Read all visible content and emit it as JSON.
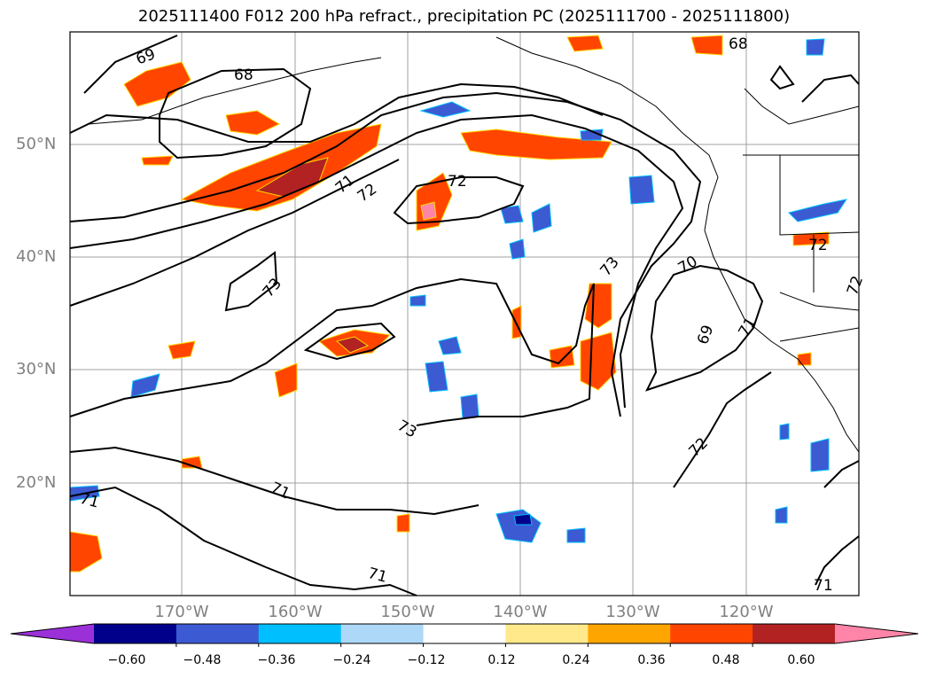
{
  "title": "2025111400 F012 200 hPa refract., precipitation PC (2025111700 - 2025111800)",
  "map": {
    "lat_labels": [
      "50°N",
      "40°N",
      "30°N",
      "20°N"
    ],
    "lon_labels": [
      "170°W",
      "160°W",
      "150°W",
      "140°W",
      "130°W",
      "120°W"
    ],
    "contour_labels": [
      "69",
      "68",
      "68",
      "71",
      "72",
      "72",
      "73",
      "73",
      "73",
      "70",
      "69",
      "71",
      "72",
      "72",
      "72",
      "71",
      "71",
      "71",
      "71"
    ],
    "contour_color": "#000000",
    "gridline_color": "#a0a0a0"
  },
  "colorbar": {
    "ticks": [
      "−0.60",
      "−0.48",
      "−0.36",
      "−0.24",
      "−0.12",
      "0.12",
      "0.24",
      "0.36",
      "0.48",
      "0.60"
    ],
    "colors": [
      "#9b30d9",
      "#00008b",
      "#3c5ad2",
      "#00bfff",
      "#add8f7",
      "#ffffff",
      "#ffe98a",
      "#ffa500",
      "#ff4500",
      "#b22222",
      "#ff85a8"
    ]
  }
}
